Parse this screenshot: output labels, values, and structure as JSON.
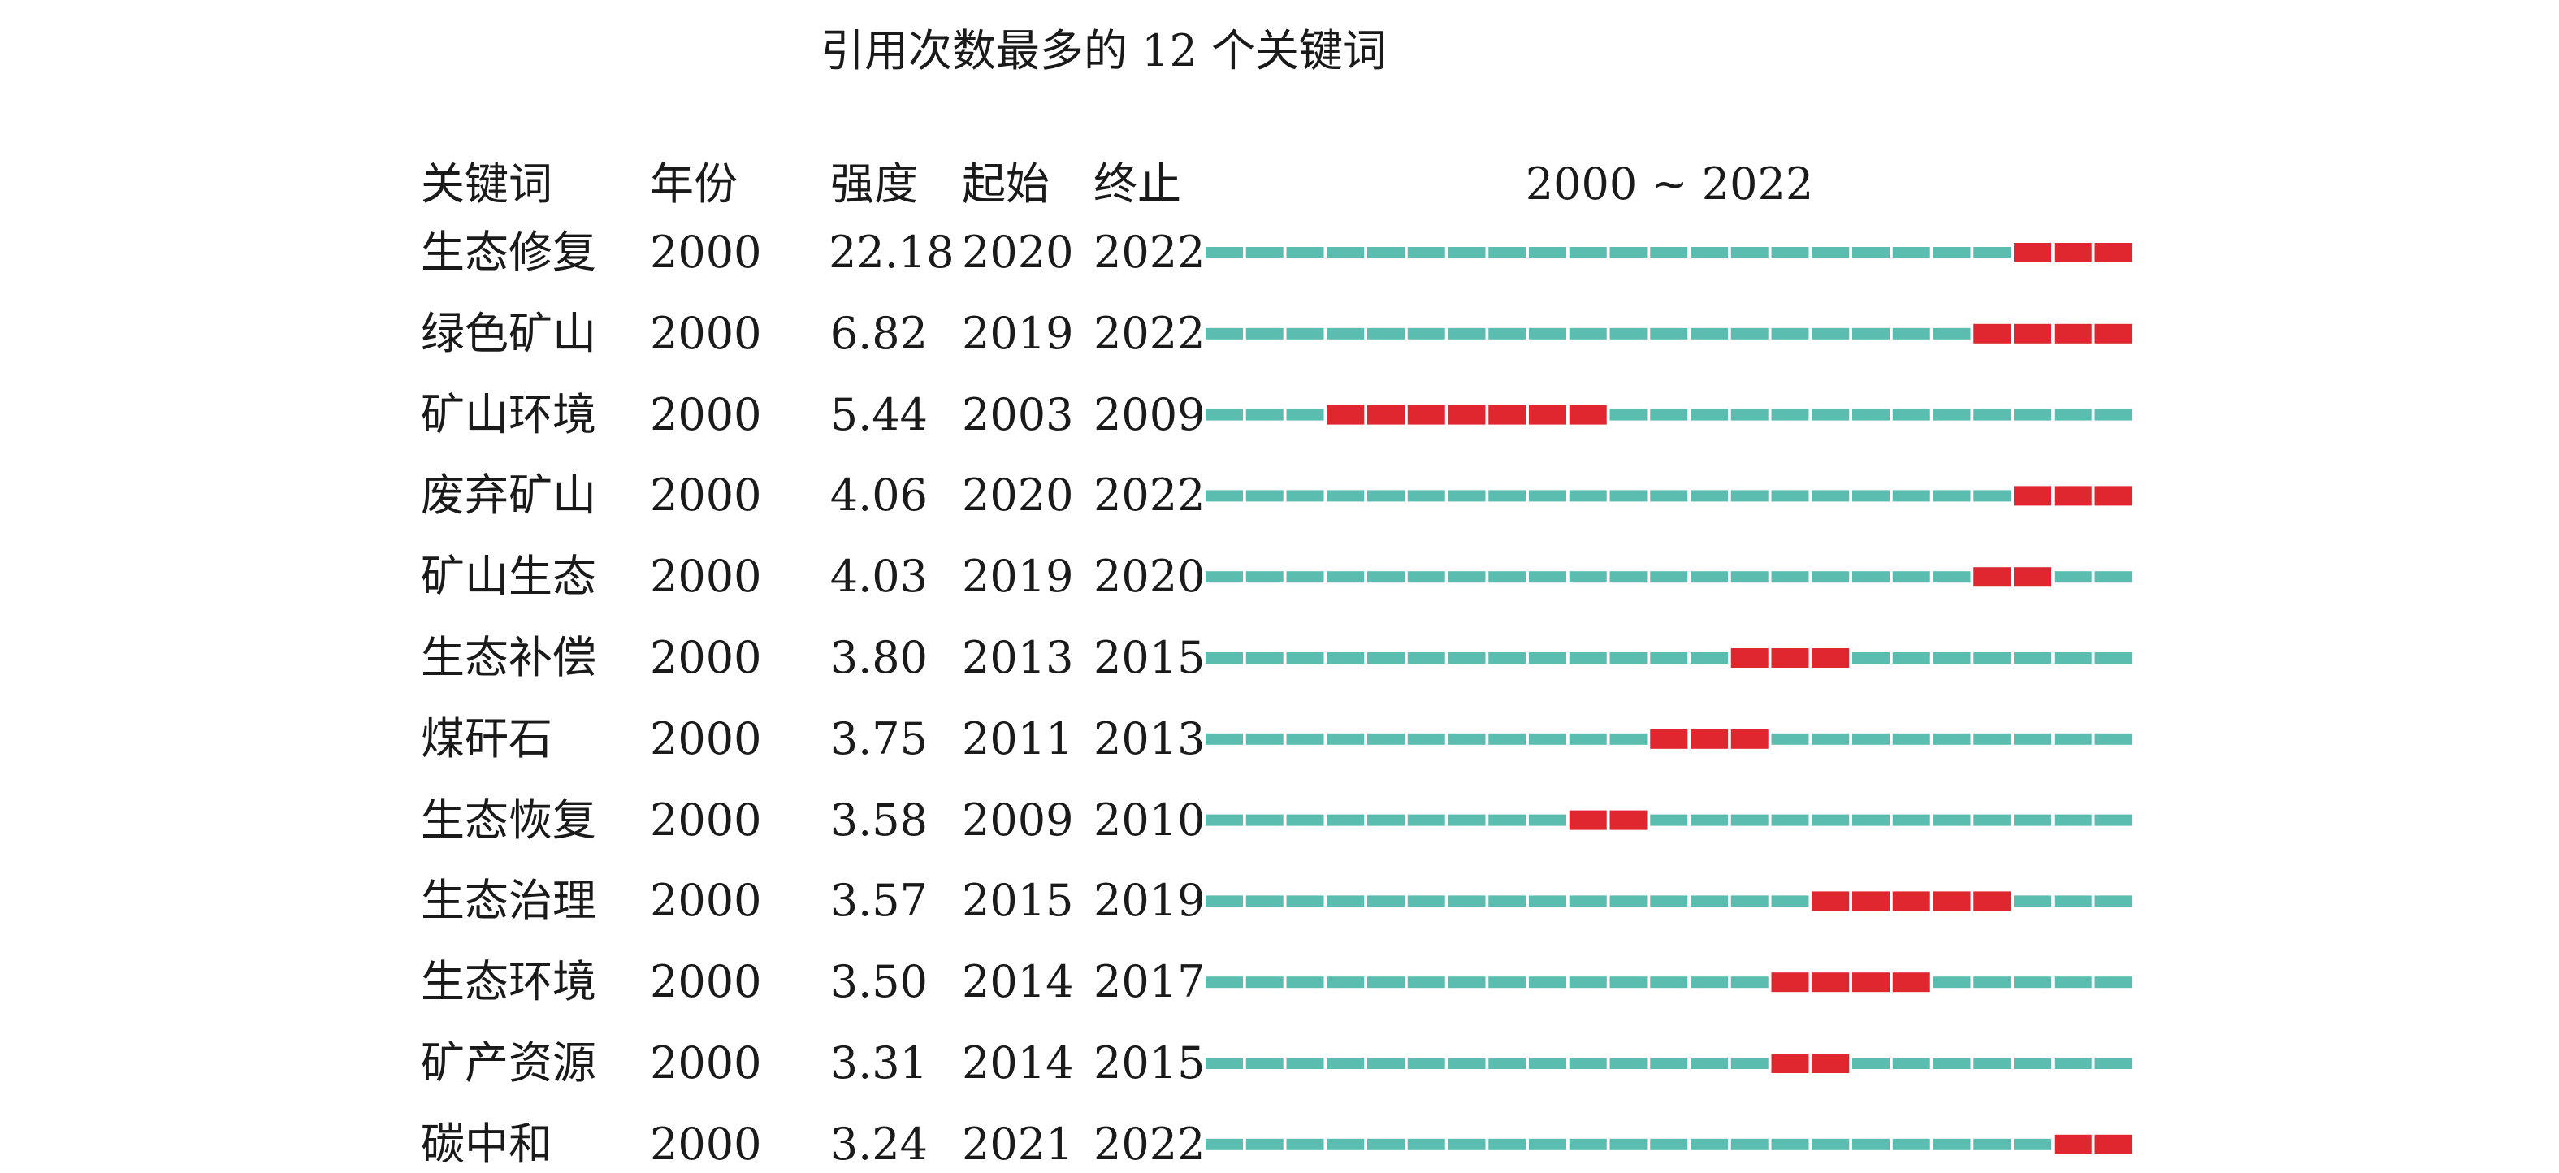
{
  "chart_data": {
    "type": "table",
    "title": "引用次数最多的 12 个关键词",
    "columns": [
      "关键词",
      "年份",
      "强度",
      "起始",
      "终止"
    ],
    "range_label": "2000 ~ 2022",
    "start_year": 2000,
    "end_year": 2022,
    "rows": [
      {
        "keyword": "生态修复",
        "year": "2000",
        "strength": "22.18",
        "begin": "2020",
        "end": "2022"
      },
      {
        "keyword": "绿色矿山",
        "year": "2000",
        "strength": "6.82",
        "begin": "2019",
        "end": "2022"
      },
      {
        "keyword": "矿山环境",
        "year": "2000",
        "strength": "5.44",
        "begin": "2003",
        "end": "2009"
      },
      {
        "keyword": "废弃矿山",
        "year": "2000",
        "strength": "4.06",
        "begin": "2020",
        "end": "2022"
      },
      {
        "keyword": "矿山生态",
        "year": "2000",
        "strength": "4.03",
        "begin": "2019",
        "end": "2020"
      },
      {
        "keyword": "生态补偿",
        "year": "2000",
        "strength": "3.80",
        "begin": "2013",
        "end": "2015"
      },
      {
        "keyword": "煤矸石",
        "year": "2000",
        "strength": "3.75",
        "begin": "2011",
        "end": "2013"
      },
      {
        "keyword": "生态恢复",
        "year": "2000",
        "strength": "3.58",
        "begin": "2009",
        "end": "2010"
      },
      {
        "keyword": "生态治理",
        "year": "2000",
        "strength": "3.57",
        "begin": "2015",
        "end": "2019"
      },
      {
        "keyword": "生态环境",
        "year": "2000",
        "strength": "3.50",
        "begin": "2014",
        "end": "2017"
      },
      {
        "keyword": "矿产资源",
        "year": "2000",
        "strength": "3.31",
        "begin": "2014",
        "end": "2015"
      },
      {
        "keyword": "碳中和",
        "year": "2000",
        "strength": "3.24",
        "begin": "2021",
        "end": "2022"
      }
    ],
    "colors": {
      "normal": "#5bbcb0",
      "burst": "#e0262e"
    }
  }
}
